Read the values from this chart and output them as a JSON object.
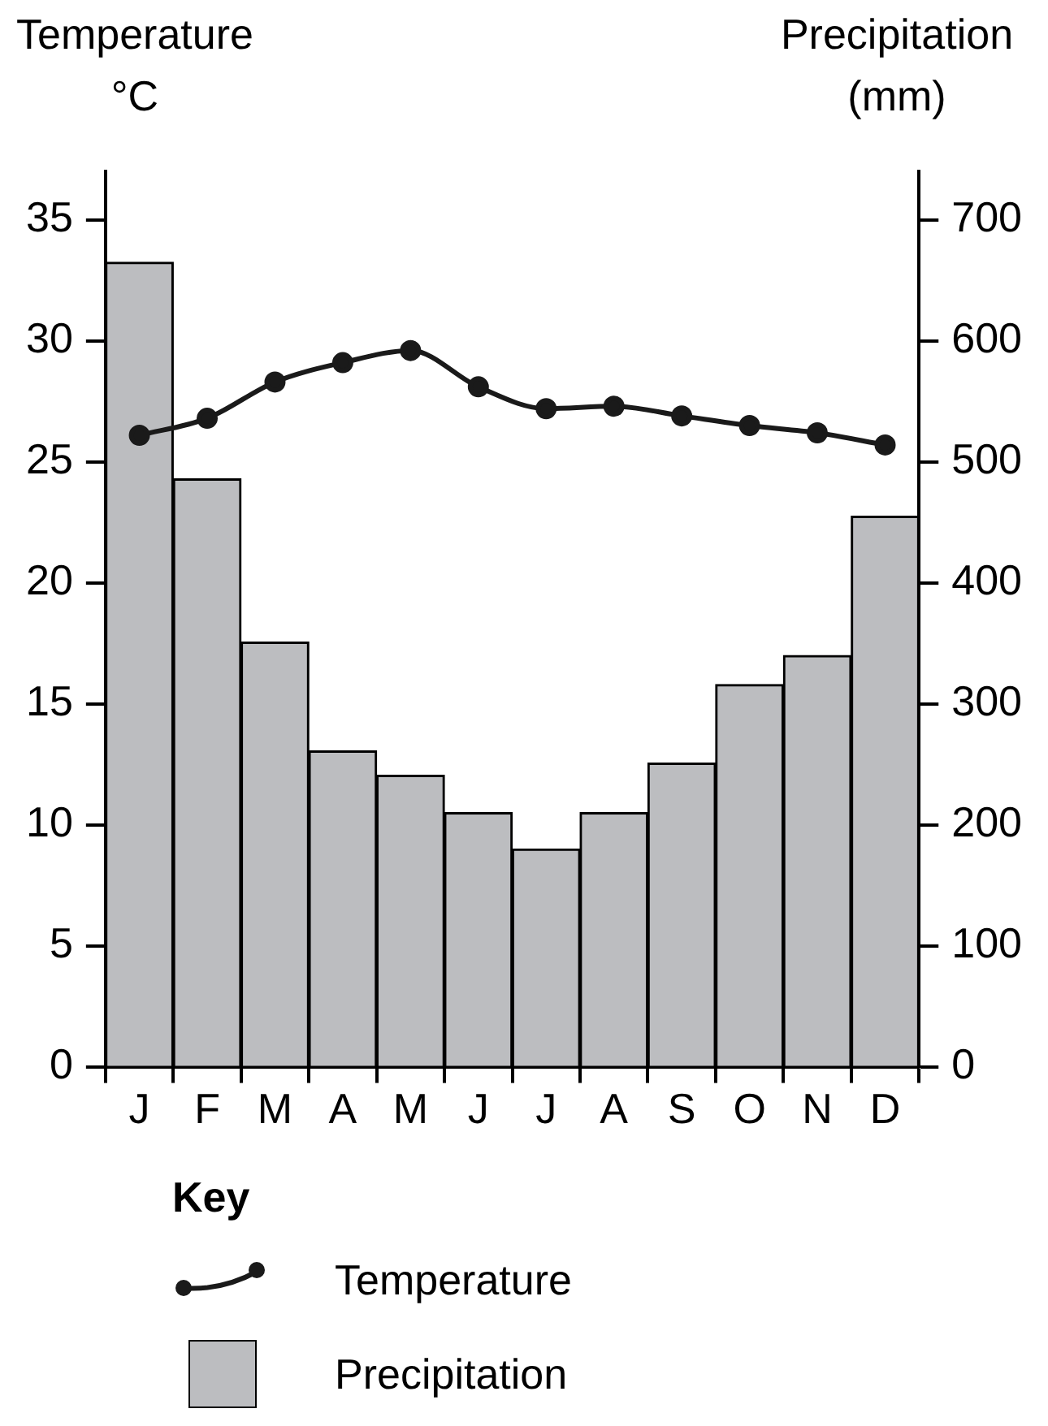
{
  "chart_data": {
    "type": "bar",
    "ylabel": "Temperature\n°C",
    "y2label": "Precipitation\n(mm)",
    "legend_title": "Key",
    "legend": "bottom",
    "grid": false,
    "marker": "circle",
    "categories": [
      "J",
      "F",
      "M",
      "A",
      "M",
      "J",
      "J",
      "A",
      "S",
      "O",
      "N",
      "D"
    ],
    "ylim": [
      0,
      37
    ],
    "yticks": [
      0,
      5,
      10,
      15,
      20,
      25,
      30,
      35
    ],
    "y2lim": [
      0,
      740
    ],
    "y2ticks": [
      0,
      100,
      200,
      300,
      400,
      500,
      600,
      700
    ],
    "series": [
      {
        "name": "Temperature",
        "type": "line",
        "axis": "y",
        "color": "#1a1a1a",
        "values": [
          26.1,
          26.8,
          28.3,
          29.1,
          29.6,
          28.1,
          27.2,
          27.3,
          26.9,
          26.5,
          26.2,
          25.7
        ]
      },
      {
        "name": "Precipitation",
        "axis": "y2",
        "color": "#bcbdc0",
        "values": [
          665,
          486,
          351,
          261,
          241,
          210,
          180,
          210,
          251,
          316,
          340,
          455
        ]
      }
    ]
  }
}
